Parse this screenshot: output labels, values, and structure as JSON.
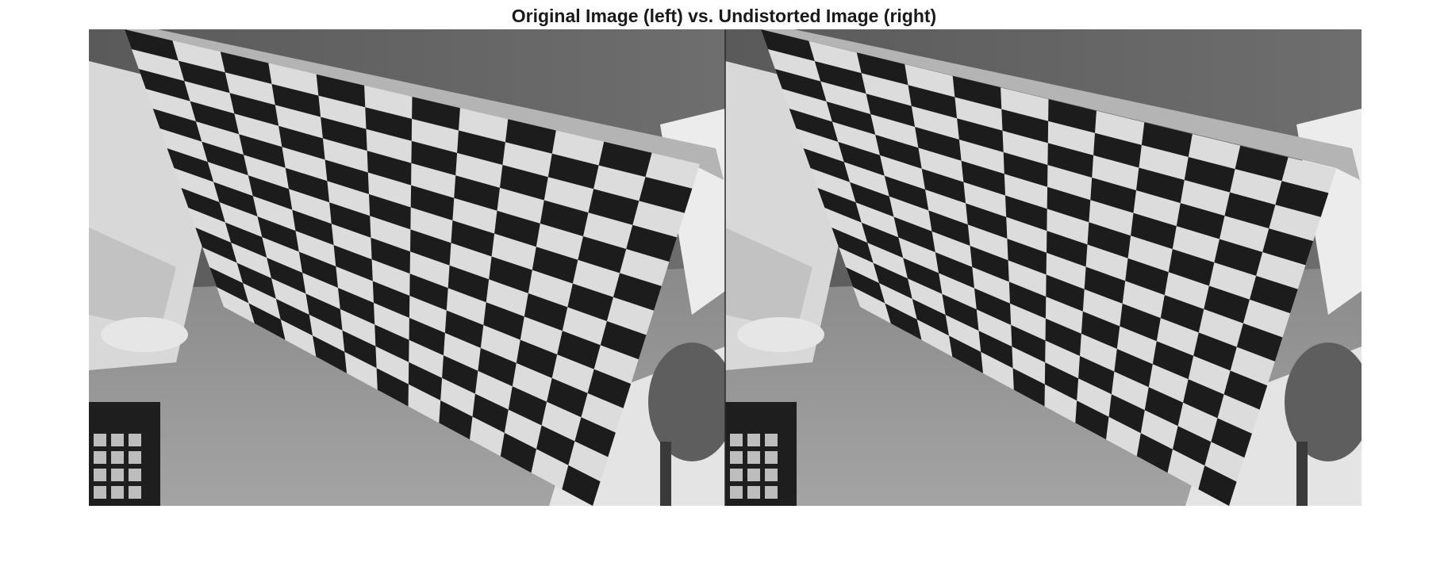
{
  "figure": {
    "title": "Original Image (left) vs. Undistorted Image (right)"
  },
  "panels": [
    {
      "content": "checkerboard-photo-original",
      "tone": "grayscale"
    },
    {
      "content": "checkerboard-photo-undistorted",
      "tone": "grayscale"
    }
  ],
  "colors": {
    "background": "#ffffff",
    "title_text": "#1a1a1a",
    "dark_square": "#1c1c1c",
    "light_square": "#dcdcdc"
  }
}
